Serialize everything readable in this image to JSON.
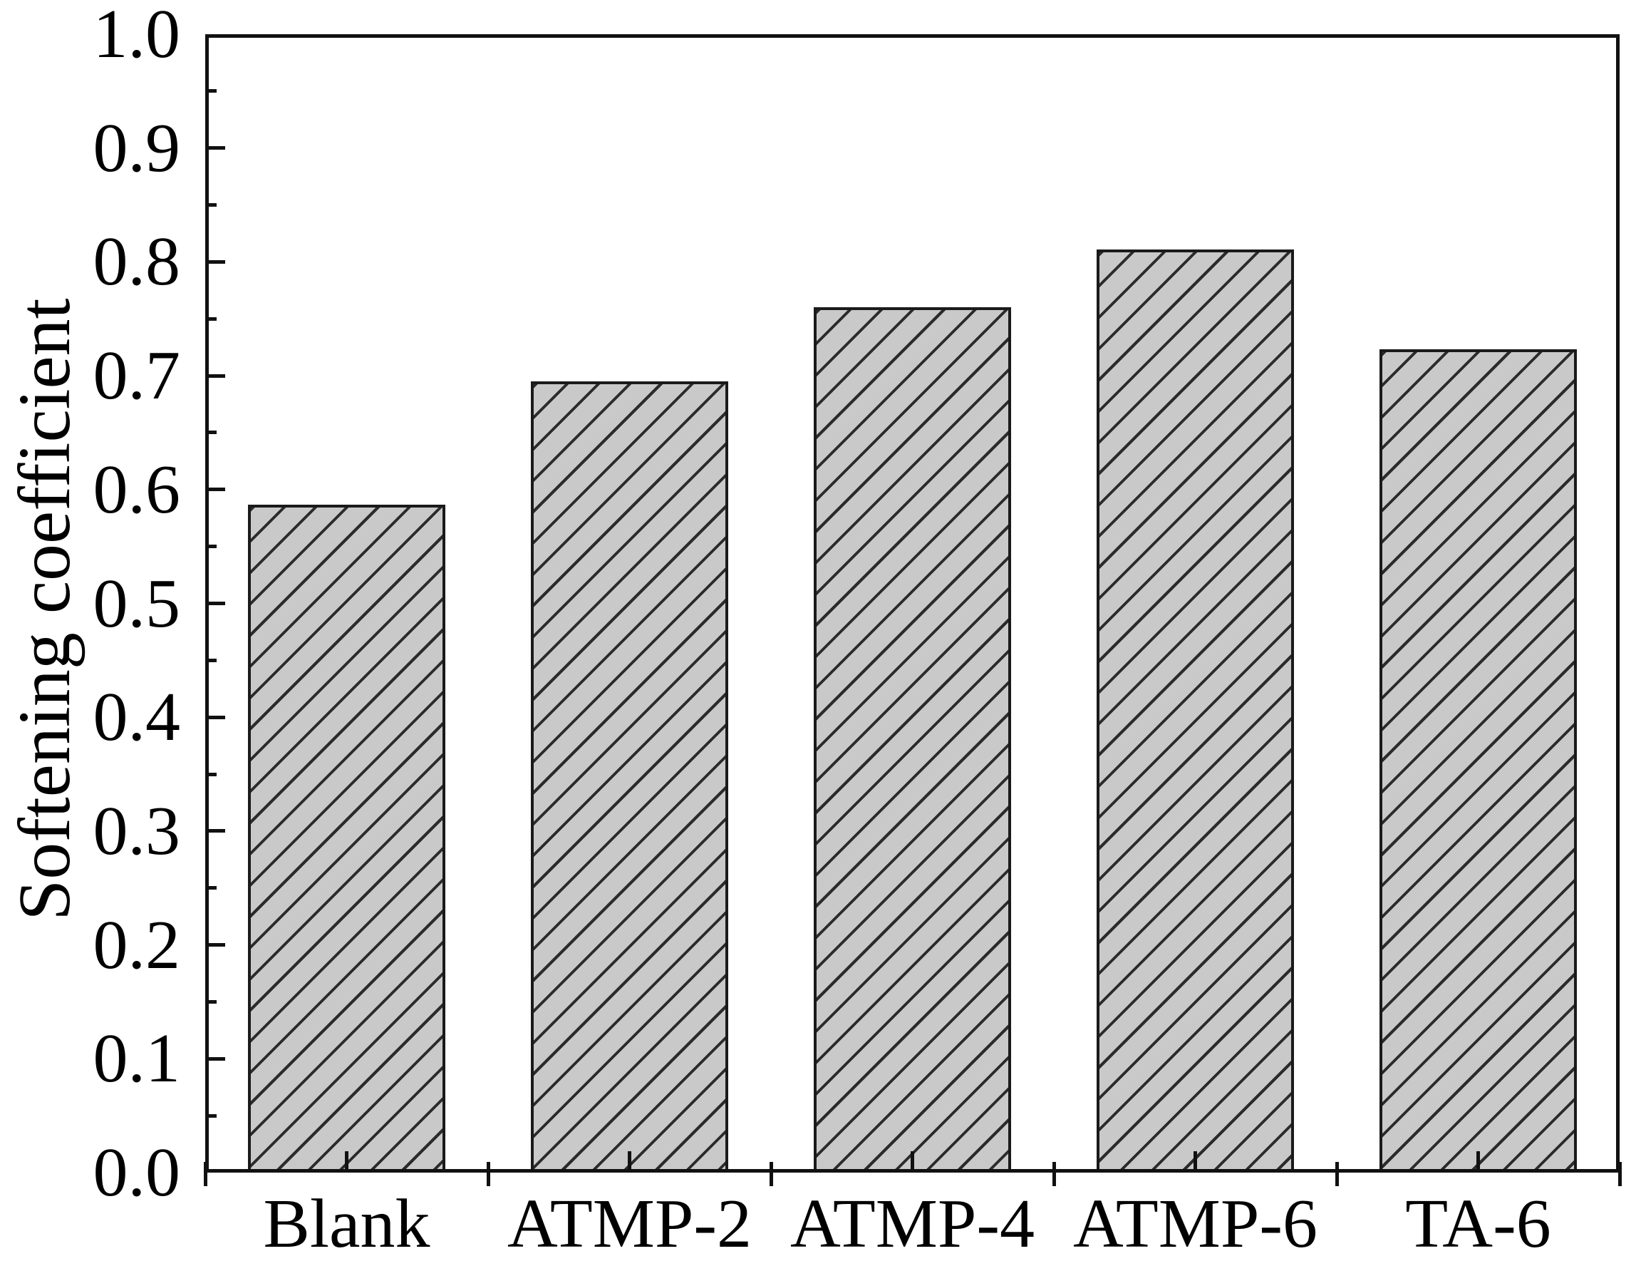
{
  "chart_data": {
    "type": "bar",
    "categories": [
      "Blank",
      "ATMP-2",
      "ATMP-4",
      "ATMP-6",
      "TA-6"
    ],
    "values": [
      0.587,
      0.695,
      0.76,
      0.811,
      0.723
    ],
    "ylabel": "Softening coefficient",
    "ylim": [
      0.0,
      1.0
    ],
    "ytick_step": 0.1,
    "ytick_minor_step": 0.05,
    "ytick_labels": [
      "0.0",
      "0.1",
      "0.2",
      "0.3",
      "0.4",
      "0.5",
      "0.6",
      "0.7",
      "0.8",
      "0.9",
      "1.0"
    ],
    "grid": false,
    "legend": "none",
    "bar_fill_color": "#c9c9c9",
    "bar_hatch": "diagonal-forward-slash",
    "bar_hatch_color": "#2b2b2b",
    "bar_border_color": "#1a1a1a",
    "axis_color": "#111111",
    "text_color": "#000000"
  }
}
